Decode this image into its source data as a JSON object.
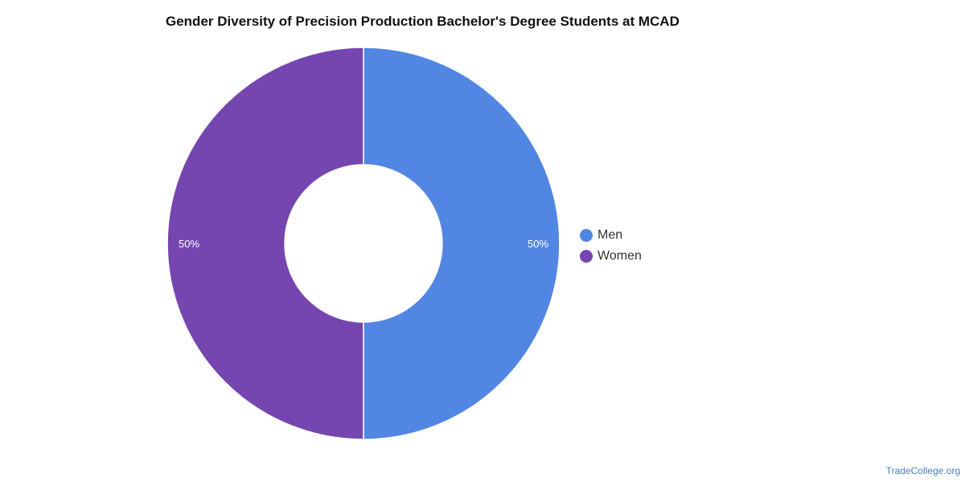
{
  "chart_data": {
    "type": "pie",
    "title": "Gender Diversity of Precision Production Bachelor's Degree Students at MCAD",
    "donut": true,
    "labels": [
      "Men",
      "Women"
    ],
    "values": [
      50,
      50
    ],
    "data_labels": [
      "50%",
      "50%"
    ],
    "colors": [
      "#5286e3",
      "#7546b0"
    ],
    "legend_position": "right"
  },
  "footer": {
    "credit": "TradeCollege.org"
  }
}
